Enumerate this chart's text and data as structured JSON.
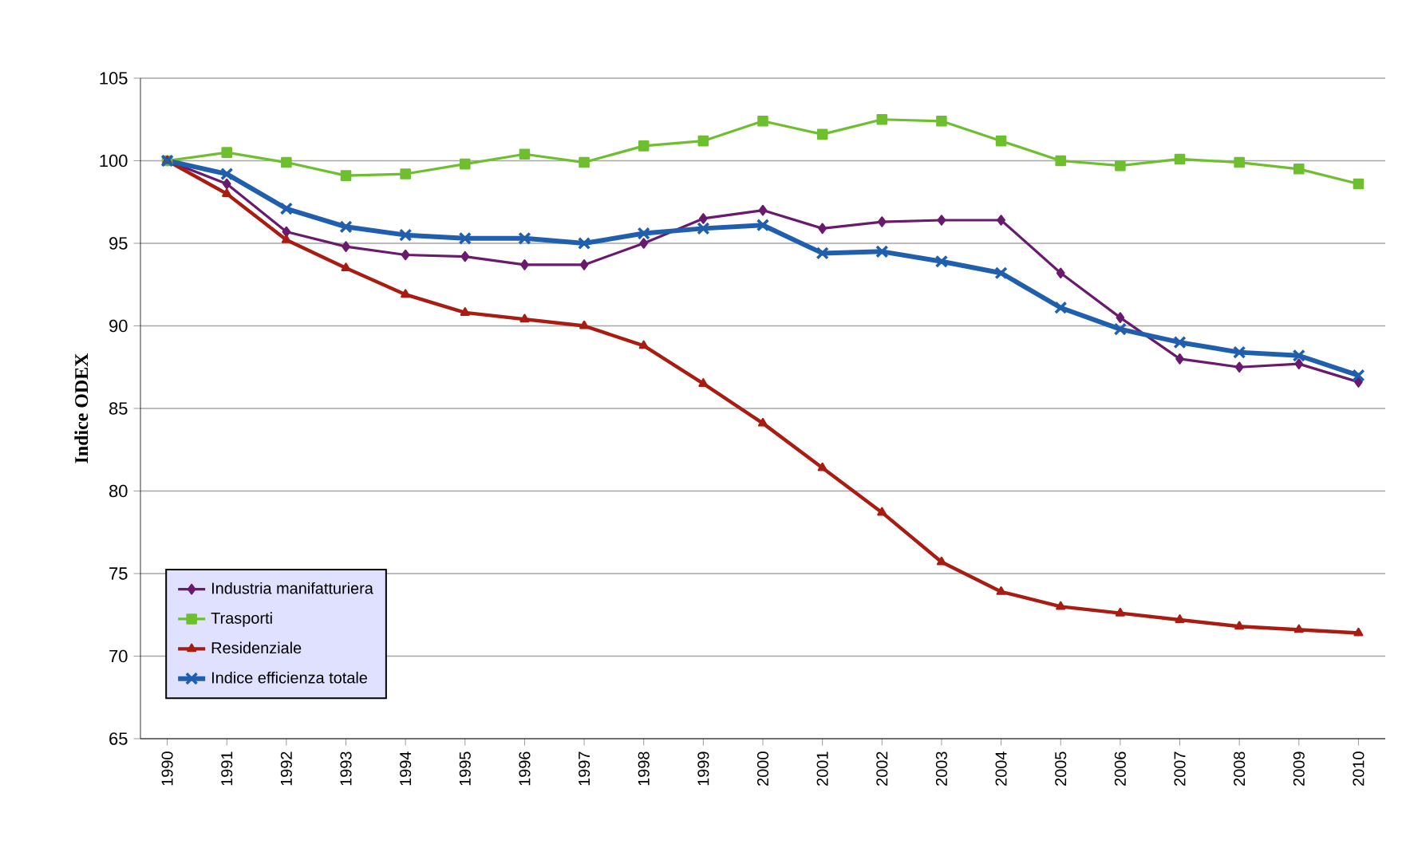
{
  "chart_data": {
    "type": "line",
    "ylabel": "Indice ODEX",
    "categories": [
      "1990",
      "1991",
      "1992",
      "1993",
      "1994",
      "1995",
      "1996",
      "1997",
      "1998",
      "1999",
      "2000",
      "2001",
      "2002",
      "2003",
      "2004",
      "2005",
      "2006",
      "2007",
      "2008",
      "2009",
      "2010"
    ],
    "series": [
      {
        "name": "Industria manifatturiera",
        "color": "#6a1a6e",
        "marker": "diamond",
        "values": [
          100,
          98.6,
          95.7,
          94.8,
          94.3,
          94.2,
          93.7,
          93.7,
          95.0,
          96.5,
          97.0,
          95.9,
          96.3,
          96.4,
          96.4,
          93.2,
          90.5,
          88.0,
          87.5,
          87.7,
          86.6
        ]
      },
      {
        "name": "Trasporti",
        "color": "#6dbf2e",
        "marker": "square",
        "values": [
          100,
          100.5,
          99.9,
          99.1,
          99.2,
          99.8,
          100.4,
          99.9,
          100.9,
          101.2,
          102.4,
          101.6,
          102.5,
          102.4,
          101.2,
          100.0,
          99.7,
          100.1,
          99.9,
          99.5,
          98.6
        ]
      },
      {
        "name": "Residenziale",
        "color": "#a81c12",
        "marker": "triangle",
        "values": [
          100,
          98.0,
          95.2,
          93.5,
          91.9,
          90.8,
          90.4,
          90.0,
          88.8,
          86.5,
          84.1,
          81.4,
          78.7,
          75.7,
          73.9,
          73.0,
          72.6,
          72.2,
          71.8,
          71.6,
          71.4
        ]
      },
      {
        "name": "Indice efficienza totale",
        "color": "#1f5fae",
        "marker": "cross",
        "values": [
          100,
          99.2,
          97.1,
          96.0,
          95.5,
          95.3,
          95.3,
          95.0,
          95.6,
          95.9,
          96.1,
          94.4,
          94.5,
          93.9,
          93.2,
          91.1,
          89.8,
          89.0,
          88.4,
          88.2,
          87.0
        ]
      }
    ],
    "ylim": [
      65,
      105
    ],
    "yticks": [
      65,
      70,
      75,
      80,
      85,
      90,
      95,
      100,
      105
    ],
    "grid": "y",
    "legend": "bottom left"
  }
}
